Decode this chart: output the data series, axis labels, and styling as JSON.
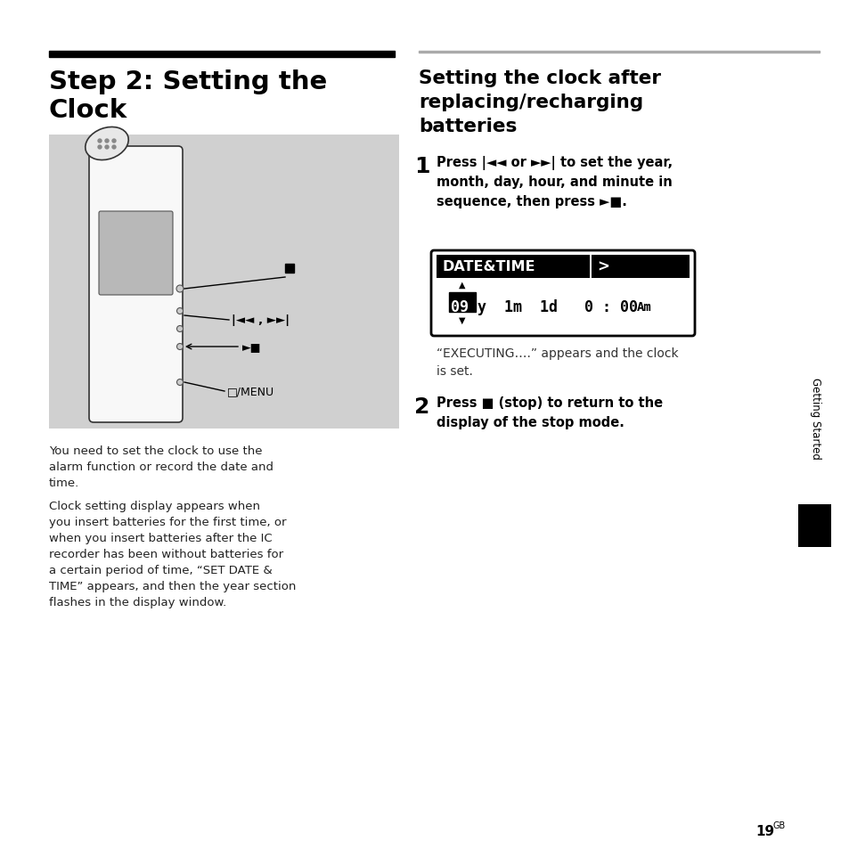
{
  "page_bg": "#ffffff",
  "left_title_line1": "Step 2: Setting the",
  "left_title_line2": "Clock",
  "right_title_line1": "Setting the clock after",
  "right_title_line2": "replacing/recharging",
  "right_title_line3": "batteries",
  "left_body1_lines": [
    "You need to set the clock to use the",
    "alarm function or record the date and",
    "time."
  ],
  "left_body2_lines": [
    "Clock setting display appears when",
    "you insert batteries for the first time, or",
    "when you insert batteries after the IC",
    "recorder has been without batteries for",
    "a certain period of time, “SET DATE &",
    "TIME” appears, and then the year section",
    "flashes in the display window."
  ],
  "step1_num": "1",
  "step2_num": "2",
  "step1_line1": "Press |",
  "step1_line1b": "◄◄ or ►►",
  "step1_line1c": "| to set the year,",
  "step1_line2": "month, day, hour, and minute in",
  "step1_line3": "sequence, then press ►■.",
  "step2_line1": "Press ■ (stop) to return to the",
  "step2_line2": "display of the stop mode.",
  "executing_line1": "“EXECUTING….” appears and the clock",
  "executing_line2": "is set.",
  "date_time_label": "DATE&TIME",
  "sidebar_text": "Getting Started",
  "page_num": "19",
  "page_num_super": "GB",
  "divider_color": "#000000",
  "right_divider_color": "#aaaaaa",
  "image_bg": "#d0d0d0",
  "sidebar_text_color": "#000000",
  "sidebar_block_color": "#000000"
}
